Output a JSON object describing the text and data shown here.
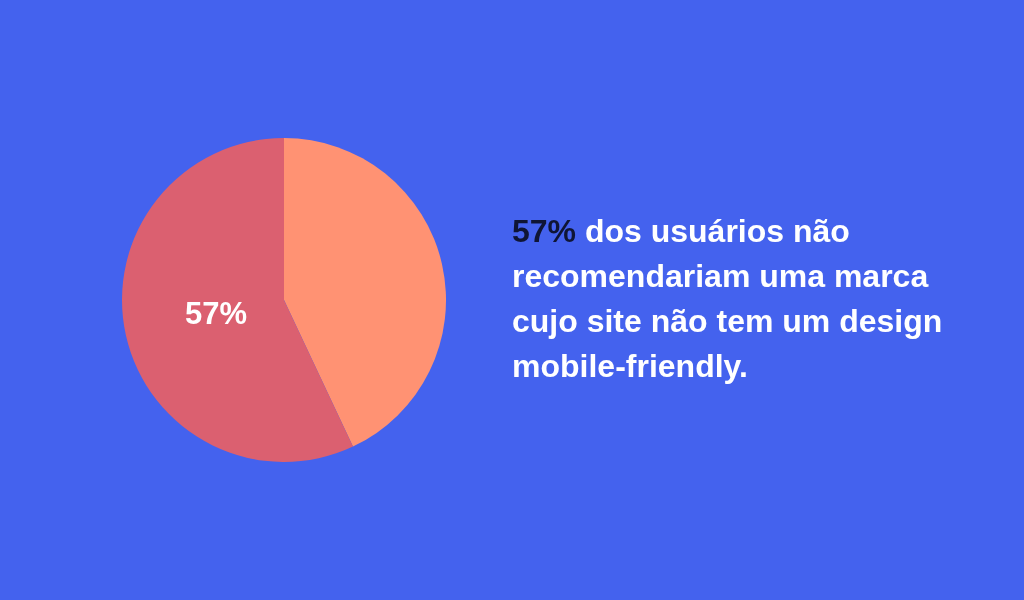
{
  "chart_data": {
    "type": "pie",
    "categories": [
      null,
      null
    ],
    "values": [
      43,
      57
    ],
    "colors": [
      "#ff9273",
      "#db6070"
    ],
    "value_labels": [
      null,
      "57%"
    ],
    "annotations": [
      "57% dos usuários não recomendariam uma marca cujo site não tem um design mobile-friendly."
    ]
  }
}
